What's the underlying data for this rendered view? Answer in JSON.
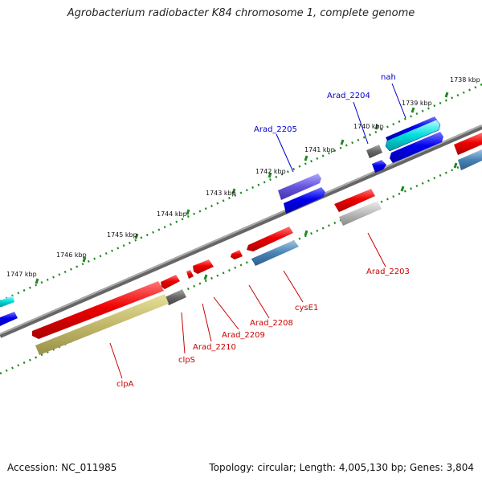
{
  "title": "Agrobacterium radiobacter K84 chromosome 1, complete genome",
  "footer": {
    "accession": "Accession: NC_011985",
    "topology": "Topology: circular; Length: 4,005,130 bp; Genes: 3,804"
  },
  "ticks": [
    {
      "label": "1738 kbp"
    },
    {
      "label": "1739 kbp"
    },
    {
      "label": "1740 kbp"
    },
    {
      "label": "1741 kbp"
    },
    {
      "label": "1742 kbp"
    },
    {
      "label": "1743 kbp"
    },
    {
      "label": "1744 kbp"
    },
    {
      "label": "1745 kbp"
    },
    {
      "label": "1746 kbp"
    },
    {
      "label": "1747 kbp"
    }
  ],
  "gene_labels": [
    {
      "text": "nah",
      "color": "#0000cc"
    },
    {
      "text": "Arad_2204",
      "color": "#0000cc"
    },
    {
      "text": "Arad_2205",
      "color": "#0000cc"
    },
    {
      "text": "Arad_2203",
      "color": "#cc0000"
    },
    {
      "text": "cysE1",
      "color": "#cc0000"
    },
    {
      "text": "Arad_2208",
      "color": "#cc0000"
    },
    {
      "text": "Arad_2209",
      "color": "#cc0000"
    },
    {
      "text": "Arad_2210",
      "color": "#cc0000"
    },
    {
      "text": "clpS",
      "color": "#cc0000"
    },
    {
      "text": "clpA",
      "color": "#cc0000"
    }
  ],
  "colors": {
    "forward_gene": "#0000ee",
    "reverse_gene": "#ee0000",
    "backbone": "#888888",
    "tick_dots": "#228822"
  }
}
